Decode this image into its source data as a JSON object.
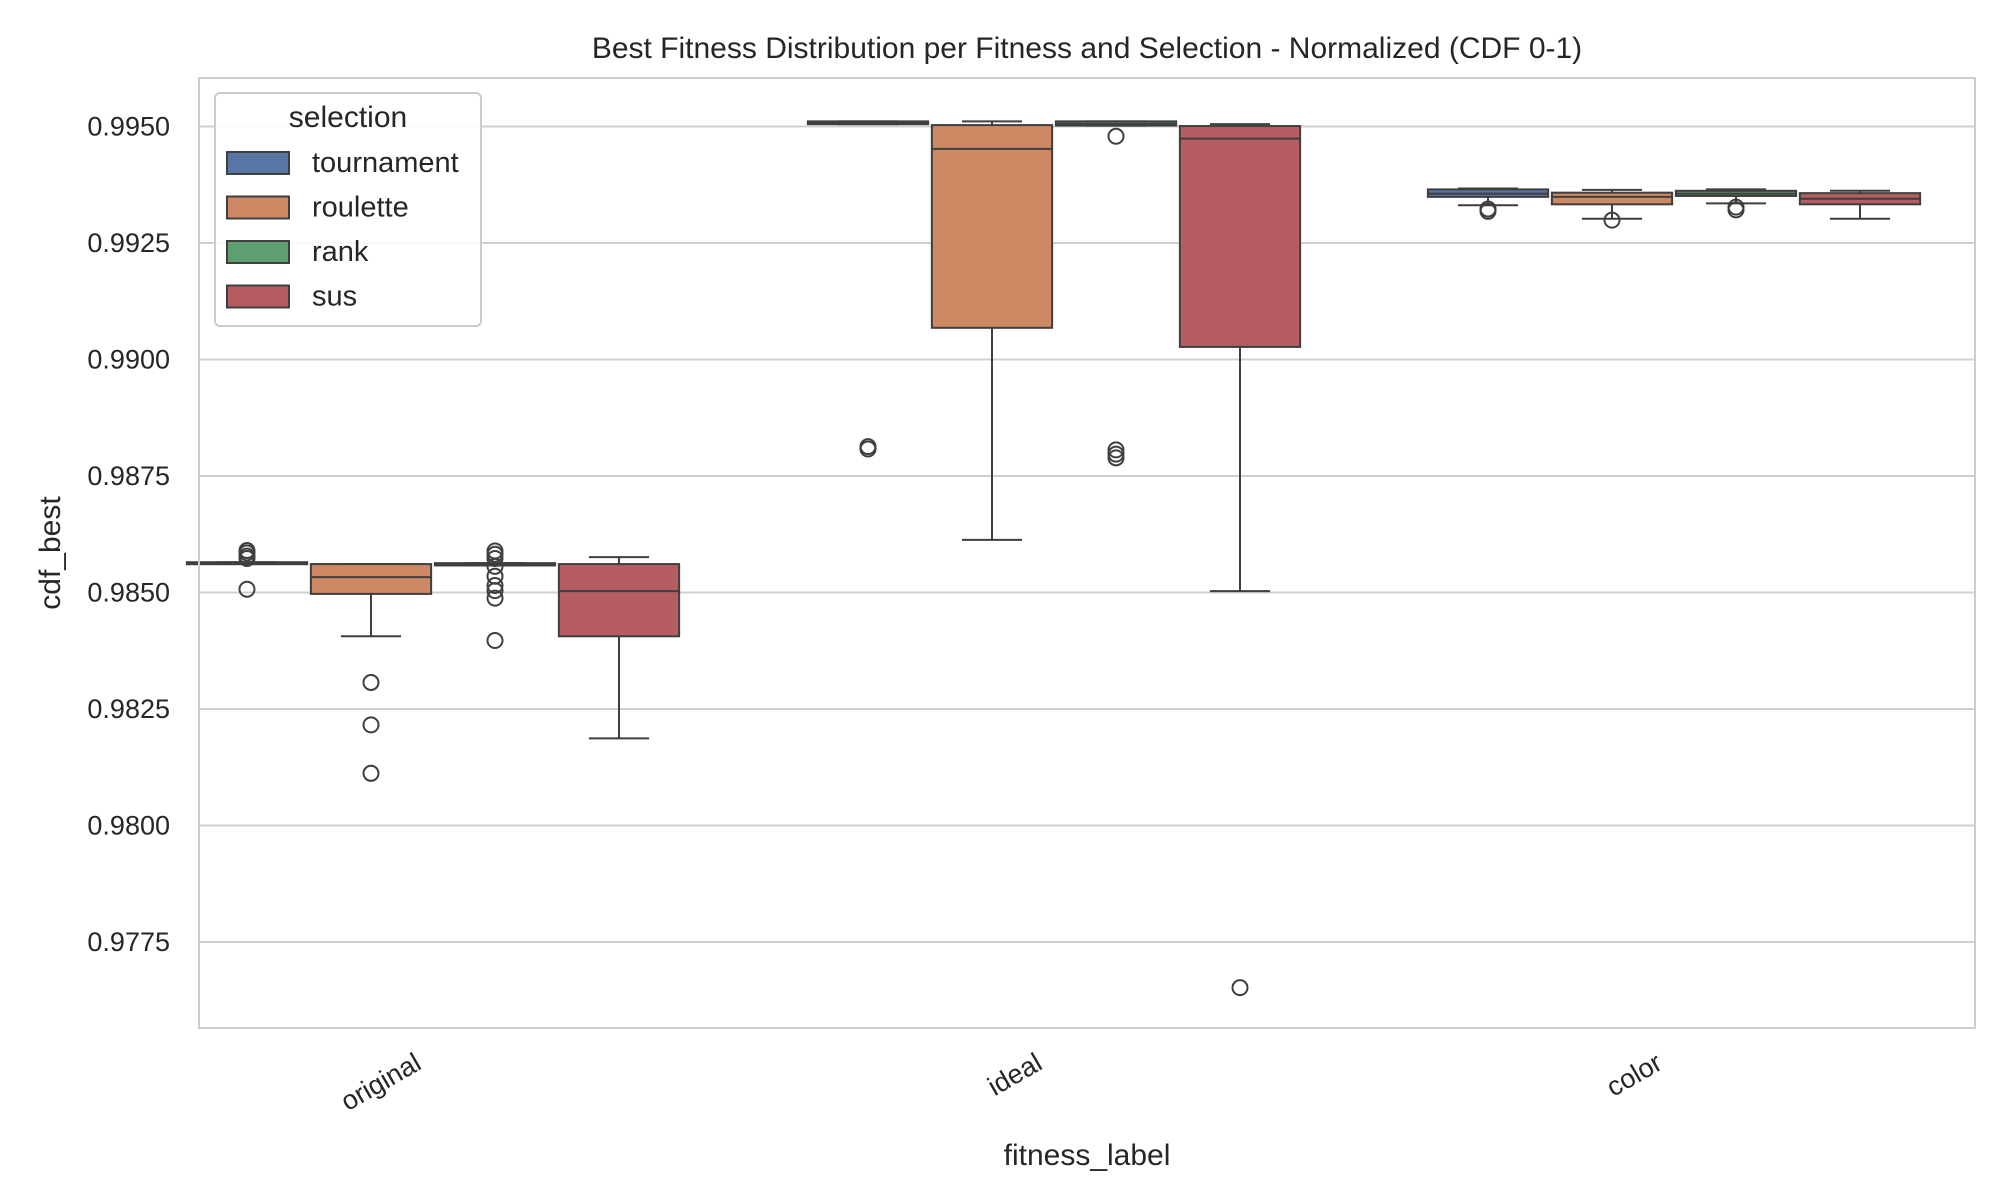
{
  "chart_data": {
    "type": "box",
    "title": "Best Fitness Distribution per Fitness and Selection - Normalized (CDF 0-1)",
    "xlabel": "fitness_label",
    "ylabel": "cdf_best",
    "categories": [
      "original",
      "ideal",
      "color"
    ],
    "y_ticks": [
      "0.9775",
      "0.9800",
      "0.9825",
      "0.9850",
      "0.9875",
      "0.9900",
      "0.9925",
      "0.9950"
    ],
    "ylim": [
      0.9757,
      0.9961
    ],
    "grid": "horizontal",
    "legend": {
      "title": "selection",
      "placement": "top-left",
      "entries": [
        "tournament",
        "roulette",
        "rank",
        "sus"
      ]
    },
    "colors": {
      "tournament": "#5875a4",
      "roulette": "#cc8963",
      "rank": "#5f9e6e",
      "sus": "#b55d60",
      "edge": "#3f3f3f",
      "grid": "#d0d0d0"
    },
    "series": [
      {
        "name": "tournament",
        "boxes": [
          {
            "category": "original",
            "whisker_low": 0.98562,
            "q1": 0.98562,
            "median": 0.98562,
            "q3": 0.98565,
            "whisker_high": 0.98565,
            "outliers": [
              0.98507,
              0.98573,
              0.98578,
              0.98585,
              0.9859
            ]
          },
          {
            "category": "ideal",
            "whisker_low": 0.99505,
            "q1": 0.99505,
            "median": 0.99508,
            "q3": 0.99511,
            "whisker_high": 0.99511,
            "outliers": [
              0.98808,
              0.98813
            ]
          },
          {
            "category": "color",
            "whisker_low": 0.99331,
            "q1": 0.99349,
            "median": 0.99356,
            "q3": 0.99365,
            "whisker_high": 0.99367,
            "outliers": [
              0.99318,
              0.99323
            ]
          }
        ]
      },
      {
        "name": "roulette",
        "boxes": [
          {
            "category": "original",
            "whisker_low": 0.98406,
            "q1": 0.98497,
            "median": 0.98533,
            "q3": 0.98561,
            "whisker_high": 0.98561,
            "outliers": [
              0.98307,
              0.98216,
              0.98112
            ]
          },
          {
            "category": "ideal",
            "whisker_low": 0.98613,
            "q1": 0.99068,
            "median": 0.99452,
            "q3": 0.99503,
            "whisker_high": 0.99511,
            "outliers": []
          },
          {
            "category": "color",
            "whisker_low": 0.99302,
            "q1": 0.99333,
            "median": 0.99349,
            "q3": 0.99358,
            "whisker_high": 0.99364,
            "outliers": [
              0.99299
            ]
          }
        ]
      },
      {
        "name": "rank",
        "boxes": [
          {
            "category": "original",
            "whisker_low": 0.98558,
            "q1": 0.98558,
            "median": 0.98561,
            "q3": 0.98563,
            "whisker_high": 0.98563,
            "outliers": [
              0.98397,
              0.98488,
              0.98504,
              0.98515,
              0.98535,
              0.98556,
              0.98573,
              0.98582,
              0.98589
            ]
          },
          {
            "category": "ideal",
            "whisker_low": 0.99502,
            "q1": 0.99502,
            "median": 0.99506,
            "q3": 0.99511,
            "whisker_high": 0.99511,
            "outliers": [
              0.98789,
              0.98797,
              0.98806,
              0.99479
            ]
          },
          {
            "category": "color",
            "whisker_low": 0.99335,
            "q1": 0.99351,
            "median": 0.99356,
            "q3": 0.99362,
            "whisker_high": 0.99365,
            "outliers": [
              0.99321,
              0.99327
            ]
          }
        ]
      },
      {
        "name": "sus",
        "boxes": [
          {
            "category": "original",
            "whisker_low": 0.98187,
            "q1": 0.98406,
            "median": 0.98503,
            "q3": 0.98561,
            "whisker_high": 0.98576,
            "outliers": []
          },
          {
            "category": "ideal",
            "whisker_low": 0.98503,
            "q1": 0.99027,
            "median": 0.99474,
            "q3": 0.99501,
            "whisker_high": 0.99505,
            "outliers": [
              0.97652
            ]
          },
          {
            "category": "color",
            "whisker_low": 0.99302,
            "q1": 0.99333,
            "median": 0.99345,
            "q3": 0.99357,
            "whisker_high": 0.99362,
            "outliers": []
          }
        ]
      }
    ]
  }
}
